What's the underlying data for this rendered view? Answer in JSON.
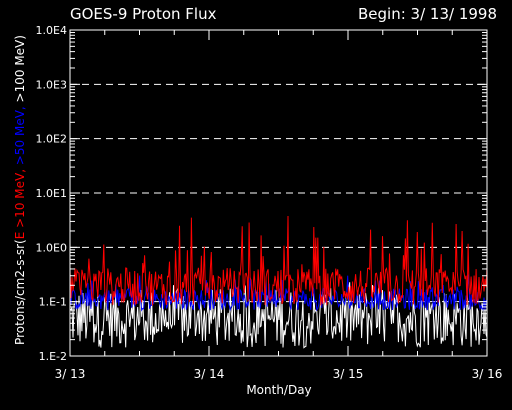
{
  "chart_data": {
    "type": "line",
    "title": "GOES-9 Proton Flux",
    "subtitle": "Begin: 3/ 13/ 1998",
    "xlabel": "Month/Day",
    "ylabel_parts": [
      {
        "text": "Protons/cm2-s-sr(",
        "color": "#ffffff"
      },
      {
        "text": "E >10 MeV,",
        "color": "#ff0000"
      },
      {
        "text": " >50 MeV,",
        "color": "#0000ff"
      },
      {
        "text": " >100 MeV)",
        "color": "#ffffff"
      }
    ],
    "y_scale": "log",
    "ylim": [
      0.01,
      10000
    ],
    "y_ticks": [
      {
        "value": 0.01,
        "label": "1.E-2"
      },
      {
        "value": 0.1,
        "label": "1.E-1"
      },
      {
        "value": 1,
        "label": "1.0E0"
      },
      {
        "value": 10,
        "label": "1.0E1"
      },
      {
        "value": 100,
        "label": "1.0E2"
      },
      {
        "value": 1000,
        "label": "1.0E3"
      },
      {
        "value": 10000,
        "label": "1.0E4"
      }
    ],
    "xlim": [
      0,
      3
    ],
    "x_ticks": [
      {
        "value": 0,
        "label": "3/ 13"
      },
      {
        "value": 1,
        "label": "3/ 14"
      },
      {
        "value": 2,
        "label": "3/ 15"
      },
      {
        "value": 3,
        "label": "3/ 16"
      }
    ],
    "grid": true,
    "series": [
      {
        "name": "E >10 MeV",
        "color": "#ff0000",
        "base": 0.19,
        "spread": 0.35,
        "spikes": 0.55
      },
      {
        "name": ">50 MeV",
        "color": "#0000ff",
        "base": 0.11,
        "spread": 0.2,
        "spikes": 0.16
      },
      {
        "name": ">100 MeV",
        "color": "#ffffff",
        "base": 0.05,
        "spread": 0.55,
        "spikes": 0.1
      }
    ]
  }
}
